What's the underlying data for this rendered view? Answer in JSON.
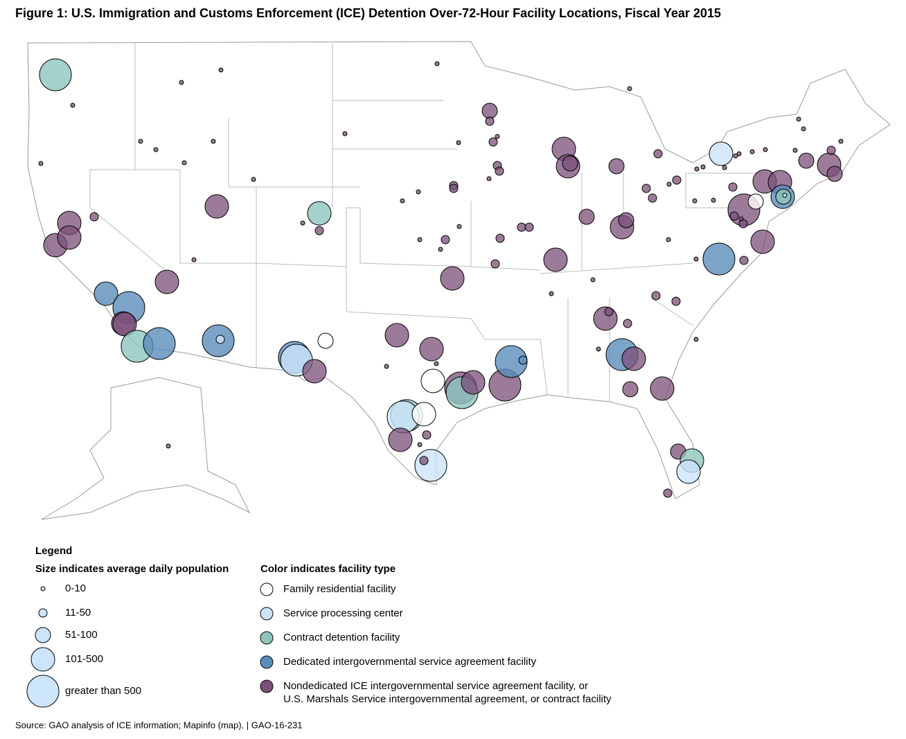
{
  "title": "Figure 1: U.S. Immigration and Customs Enforcement (ICE) Detention Over-72-Hour Facility Locations, Fiscal Year 2015",
  "legend": {
    "heading": "Legend",
    "size_heading": "Size indicates average daily population",
    "sizes": [
      "0-10",
      "11-50",
      "51-100",
      "101-500",
      "greater than 500"
    ],
    "size_color": "#cce5fa",
    "color_heading": "Color indicates facility type",
    "types": [
      {
        "lines": [
          "Family residential facility"
        ],
        "color": "#ffffff"
      },
      {
        "lines": [
          "Service processing center"
        ],
        "color": "#cce5fa"
      },
      {
        "lines": [
          "Contract detention facility"
        ],
        "color": "#8ec6be"
      },
      {
        "lines": [
          "Dedicated intergovernmental service agreement facility"
        ],
        "color": "#5b8dbb"
      },
      {
        "lines": [
          "Nondedicated ICE intergovernmental service agreement facility, or",
          "U.S. Marshals Service intergovernmental agreement, or contract facility"
        ],
        "color": "#7b4f78"
      }
    ]
  },
  "source": "Source: GAO analysis of ICE information; Mapinfo (map).  |  GAO-16-231"
}
